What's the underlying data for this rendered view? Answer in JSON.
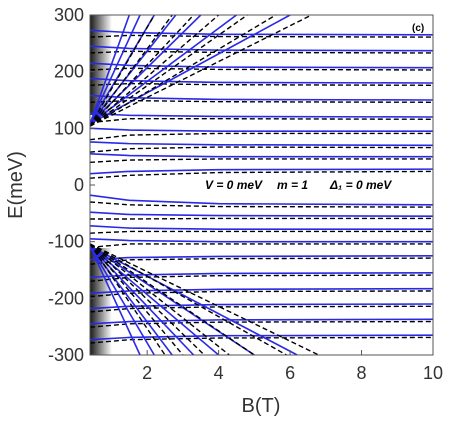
{
  "chart_data": {
    "type": "line",
    "xlabel": "B(T)",
    "ylabel": "E(meV)",
    "annotations": [
      "(c)",
      "V = 0 meV",
      "m = 1",
      "Δ₁ = 0 meV"
    ],
    "xlim": [
      0.4,
      10
    ],
    "ylim": [
      -300,
      300
    ],
    "xticks": [
      2,
      4,
      6,
      8,
      10
    ],
    "yticks": [
      -300,
      -200,
      -100,
      0,
      100,
      200,
      300
    ],
    "x": [
      0.4,
      1.5,
      4,
      10
    ],
    "series": [
      {
        "color": "#2a2ae6",
        "dash": false,
        "values": [
          273,
          269,
          266,
          265
        ]
      },
      {
        "color": "#2a2ae6",
        "dash": false,
        "values": [
          245,
          241,
          238,
          237
        ]
      },
      {
        "color": "#2a2ae6",
        "dash": false,
        "values": [
          215,
          211,
          208,
          207
        ]
      },
      {
        "color": "#2a2ae6",
        "dash": false,
        "values": [
          188,
          184,
          181,
          180
        ]
      },
      {
        "color": "#2a2ae6",
        "dash": false,
        "values": [
          158,
          154,
          151,
          150
        ]
      },
      {
        "color": "#2a2ae6",
        "dash": false,
        "values": [
          126,
          123,
          121,
          120
        ]
      },
      {
        "color": "#2a2ae6",
        "dash": false,
        "values": [
          100,
          97,
          95,
          95
        ]
      },
      {
        "color": "#2a2ae6",
        "dash": false,
        "values": [
          76,
          73,
          71,
          70
        ]
      },
      {
        "color": "#2a2ae6",
        "dash": false,
        "values": [
          55,
          52,
          50,
          50
        ]
      },
      {
        "color": "#2a2ae6",
        "dash": false,
        "values": [
          20,
          24,
          27,
          28
        ]
      },
      {
        "color": "#2a2ae6",
        "dash": false,
        "values": [
          -18,
          -27,
          -33,
          -35
        ]
      },
      {
        "color": "#2a2ae6",
        "dash": false,
        "values": [
          -48,
          -52,
          -54,
          -55
        ]
      },
      {
        "color": "#2a2ae6",
        "dash": false,
        "values": [
          -72,
          -76,
          -78,
          -78
        ]
      },
      {
        "color": "#2a2ae6",
        "dash": false,
        "values": [
          -95,
          -98,
          -100,
          -100
        ]
      },
      {
        "color": "#2a2ae6",
        "dash": false,
        "values": [
          -132,
          -128,
          -126,
          -125
        ]
      },
      {
        "color": "#2a2ae6",
        "dash": false,
        "values": [
          -163,
          -159,
          -156,
          -155
        ]
      },
      {
        "color": "#2a2ae6",
        "dash": false,
        "values": [
          -191,
          -187,
          -184,
          -183
        ]
      },
      {
        "color": "#2a2ae6",
        "dash": false,
        "values": [
          -218,
          -214,
          -211,
          -210
        ]
      },
      {
        "color": "#2a2ae6",
        "dash": false,
        "values": [
          -245,
          -241,
          -238,
          -237
        ]
      },
      {
        "color": "#2a2ae6",
        "dash": false,
        "values": [
          -273,
          -269,
          -266,
          -265
        ]
      },
      {
        "color": "#000000",
        "dash": true,
        "values": [
          261,
          264,
          262,
          261
        ]
      },
      {
        "color": "#000000",
        "dash": true,
        "values": [
          233,
          236,
          234,
          233
        ]
      },
      {
        "color": "#000000",
        "dash": true,
        "values": [
          203,
          206,
          204,
          203
        ]
      },
      {
        "color": "#000000",
        "dash": true,
        "values": [
          176,
          179,
          177,
          176
        ]
      },
      {
        "color": "#000000",
        "dash": true,
        "values": [
          146,
          149,
          147,
          146
        ]
      },
      {
        "color": "#000000",
        "dash": true,
        "values": [
          110,
          117,
          117,
          116
        ]
      },
      {
        "color": "#000000",
        "dash": true,
        "values": [
          80,
          88,
          91,
          91
        ]
      },
      {
        "color": "#000000",
        "dash": true,
        "values": [
          58,
          64,
          67,
          66
        ]
      },
      {
        "color": "#000000",
        "dash": true,
        "values": [
          40,
          44,
          46,
          46
        ]
      },
      {
        "color": "#000000",
        "dash": true,
        "values": [
          12,
          17,
          22,
          24
        ]
      },
      {
        "color": "#000000",
        "dash": true,
        "values": [
          -30,
          -35,
          -38,
          -39
        ]
      },
      {
        "color": "#000000",
        "dash": true,
        "values": [
          -60,
          -60,
          -59,
          -59
        ]
      },
      {
        "color": "#000000",
        "dash": true,
        "values": [
          -85,
          -82,
          -82,
          -82
        ]
      },
      {
        "color": "#000000",
        "dash": true,
        "values": [
          -110,
          -104,
          -104,
          -104
        ]
      },
      {
        "color": "#000000",
        "dash": true,
        "values": [
          -140,
          -132,
          -130,
          -129
        ]
      },
      {
        "color": "#000000",
        "dash": true,
        "values": [
          -170,
          -163,
          -160,
          -159
        ]
      },
      {
        "color": "#000000",
        "dash": true,
        "values": [
          -197,
          -191,
          -188,
          -187
        ]
      },
      {
        "color": "#000000",
        "dash": true,
        "values": [
          -224,
          -218,
          -215,
          -214
        ]
      },
      {
        "color": "#000000",
        "dash": true,
        "values": [
          -251,
          -245,
          -242,
          -241
        ]
      },
      {
        "color": "#000000",
        "dash": true,
        "values": [
          -279,
          -273,
          -270,
          -269
        ]
      },
      {
        "color": "#2a2ae6",
        "dash": false,
        "x": [
          0.4,
          6.0
        ],
        "values": [
          108,
          300
        ]
      },
      {
        "color": "#2a2ae6",
        "dash": false,
        "x": [
          0.4,
          4.5
        ],
        "values": [
          108,
          300
        ]
      },
      {
        "color": "#2a2ae6",
        "dash": false,
        "x": [
          0.4,
          3.5
        ],
        "values": [
          108,
          300
        ]
      },
      {
        "color": "#2a2ae6",
        "dash": false,
        "x": [
          0.4,
          2.8
        ],
        "values": [
          108,
          300
        ]
      },
      {
        "color": "#2a2ae6",
        "dash": false,
        "x": [
          0.4,
          2.2
        ],
        "values": [
          108,
          300
        ]
      },
      {
        "color": "#2a2ae6",
        "dash": false,
        "x": [
          0.4,
          1.8
        ],
        "values": [
          108,
          300
        ]
      },
      {
        "color": "#2a2ae6",
        "dash": false,
        "x": [
          0.4,
          1.5
        ],
        "values": [
          108,
          300
        ]
      },
      {
        "color": "#000000",
        "dash": true,
        "x": [
          0.4,
          6.6
        ],
        "values": [
          104,
          300
        ]
      },
      {
        "color": "#000000",
        "dash": true,
        "x": [
          0.4,
          5.6
        ],
        "values": [
          104,
          300
        ]
      },
      {
        "color": "#000000",
        "dash": true,
        "x": [
          0.4,
          4.8
        ],
        "values": [
          104,
          300
        ]
      },
      {
        "color": "#000000",
        "dash": true,
        "x": [
          0.4,
          4.0
        ],
        "values": [
          104,
          300
        ]
      },
      {
        "color": "#000000",
        "dash": true,
        "x": [
          0.4,
          3.3
        ],
        "values": [
          104,
          300
        ]
      },
      {
        "color": "#000000",
        "dash": true,
        "x": [
          0.4,
          2.7
        ],
        "values": [
          104,
          300
        ]
      },
      {
        "color": "#000000",
        "dash": true,
        "x": [
          0.4,
          2.2
        ],
        "values": [
          104,
          300
        ]
      },
      {
        "color": "#2a2ae6",
        "dash": false,
        "x": [
          0.4,
          6.2
        ],
        "values": [
          -108,
          -300
        ]
      },
      {
        "color": "#2a2ae6",
        "dash": false,
        "x": [
          0.4,
          5.0
        ],
        "values": [
          -108,
          -300
        ]
      },
      {
        "color": "#2a2ae6",
        "dash": false,
        "x": [
          0.4,
          4.0
        ],
        "values": [
          -108,
          -300
        ]
      },
      {
        "color": "#2a2ae6",
        "dash": false,
        "x": [
          0.4,
          3.3
        ],
        "values": [
          -108,
          -300
        ]
      },
      {
        "color": "#2a2ae6",
        "dash": false,
        "x": [
          0.4,
          2.7
        ],
        "values": [
          -108,
          -300
        ]
      },
      {
        "color": "#2a2ae6",
        "dash": false,
        "x": [
          0.4,
          2.2
        ],
        "values": [
          -108,
          -300
        ]
      },
      {
        "color": "#2a2ae6",
        "dash": false,
        "x": [
          0.4,
          1.8
        ],
        "values": [
          -108,
          -300
        ]
      },
      {
        "color": "#000000",
        "dash": true,
        "x": [
          0.4,
          6.8
        ],
        "values": [
          -104,
          -300
        ]
      },
      {
        "color": "#000000",
        "dash": true,
        "x": [
          0.4,
          5.9
        ],
        "values": [
          -104,
          -300
        ]
      },
      {
        "color": "#000000",
        "dash": true,
        "x": [
          0.4,
          5.0
        ],
        "values": [
          -104,
          -300
        ]
      },
      {
        "color": "#000000",
        "dash": true,
        "x": [
          0.4,
          4.3
        ],
        "values": [
          -104,
          -300
        ]
      },
      {
        "color": "#000000",
        "dash": true,
        "x": [
          0.4,
          3.6
        ],
        "values": [
          -104,
          -300
        ]
      },
      {
        "color": "#000000",
        "dash": true,
        "x": [
          0.4,
          3.0
        ],
        "values": [
          -104,
          -300
        ]
      },
      {
        "color": "#000000",
        "dash": true,
        "x": [
          0.4,
          2.5
        ],
        "values": [
          -104,
          -300
        ]
      }
    ]
  }
}
